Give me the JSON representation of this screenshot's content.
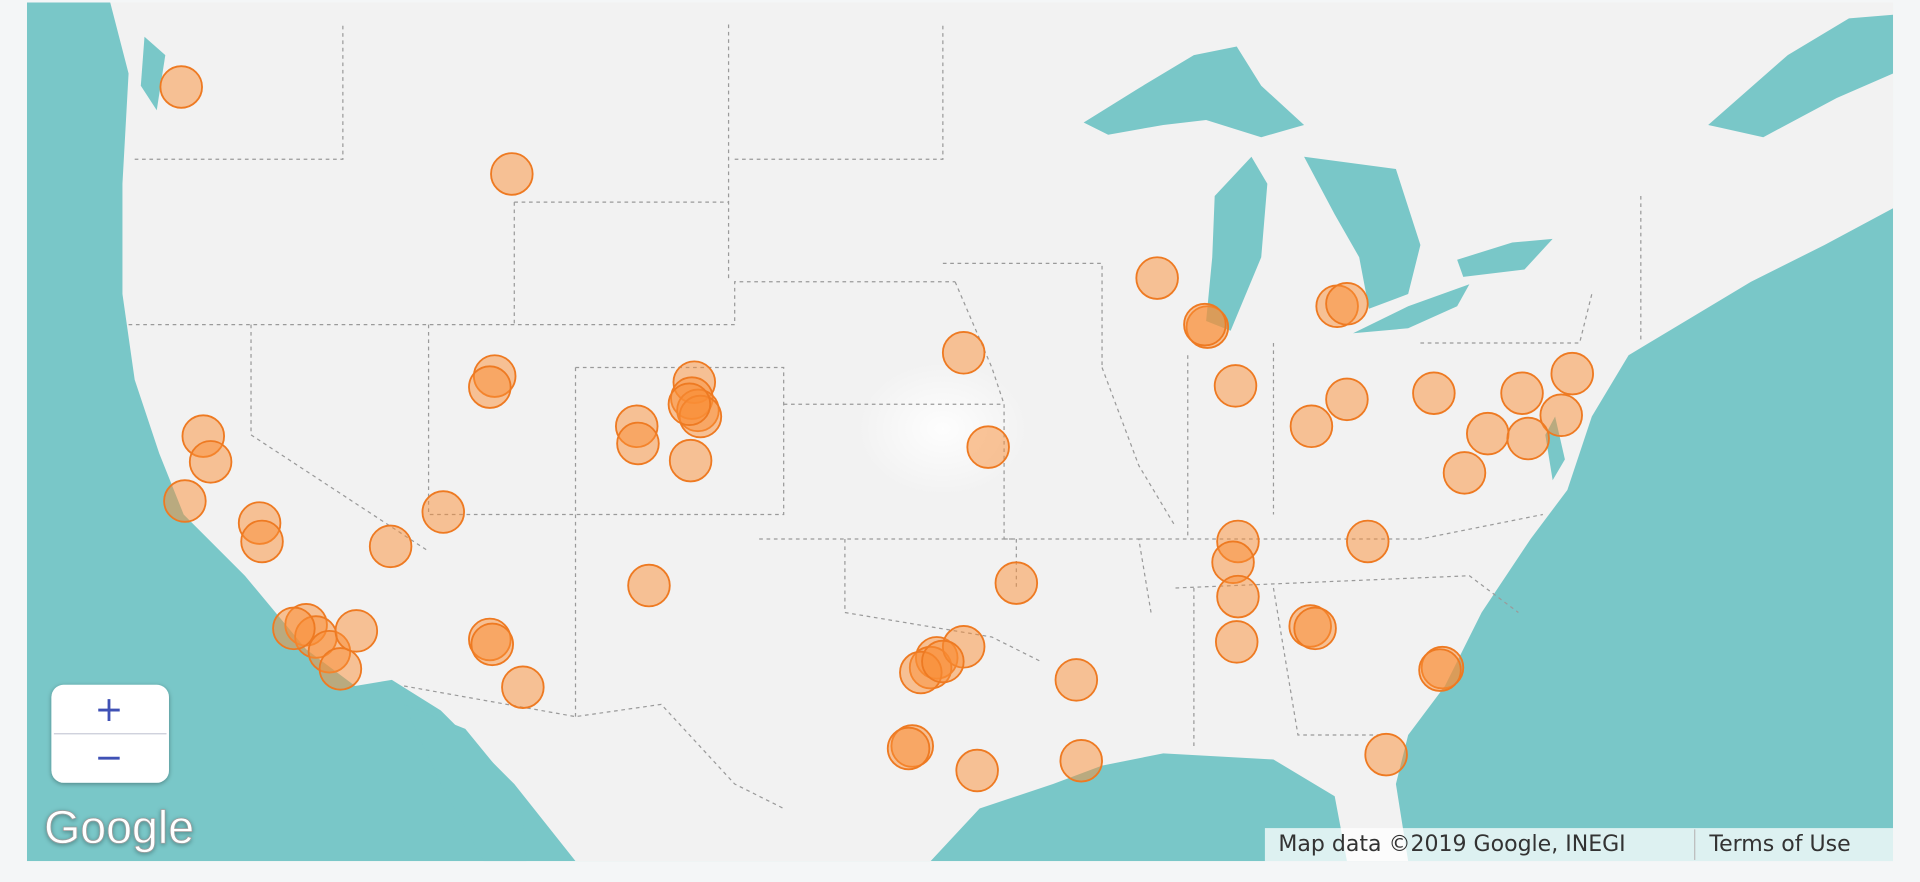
{
  "map": {
    "zoom_in": "+",
    "zoom_out": "−",
    "logo": "Google",
    "attribution": "Map data ©2019 Google, INEGI",
    "terms": "Terms of Use"
  }
}
